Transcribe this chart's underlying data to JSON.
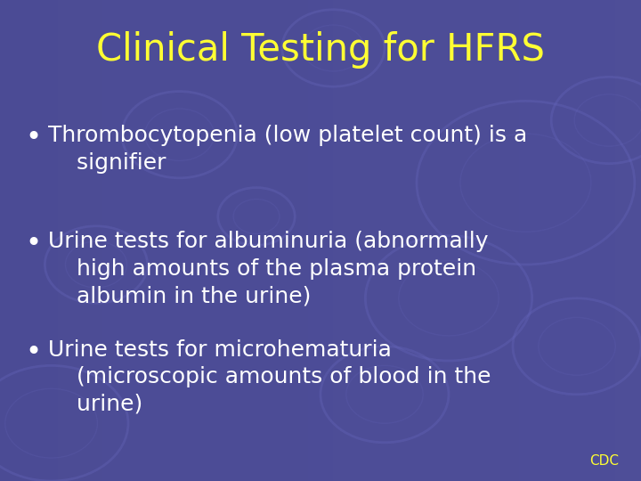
{
  "title": "Clinical Testing for HFRS",
  "title_color": "#FFFF33",
  "title_fontsize": 30,
  "bullet_points": [
    "Thrombocytopenia (low platelet count) is a\n    signifier",
    "Urine tests for albuminuria (abnormally\n    high amounts of the plasma protein\n    albumin in the urine)",
    "Urine tests for microhematuria\n    (microscopic amounts of blood in the\n    urine)"
  ],
  "bullet_color": "#FFFFFF",
  "bullet_fontsize": 18,
  "bg_color": "#4a4a9a",
  "circle_color": "#5555aa",
  "watermark_text": "CDC",
  "watermark_color": "#FFFF33",
  "watermark_fontsize": 11,
  "circle_params": [
    [
      0.82,
      0.62,
      0.17
    ],
    [
      0.7,
      0.38,
      0.13
    ],
    [
      0.9,
      0.28,
      0.1
    ],
    [
      0.08,
      0.12,
      0.12
    ],
    [
      0.52,
      0.9,
      0.08
    ],
    [
      0.28,
      0.72,
      0.09
    ],
    [
      0.6,
      0.18,
      0.1
    ],
    [
      0.15,
      0.45,
      0.08
    ],
    [
      0.95,
      0.75,
      0.09
    ],
    [
      0.4,
      0.55,
      0.06
    ]
  ]
}
